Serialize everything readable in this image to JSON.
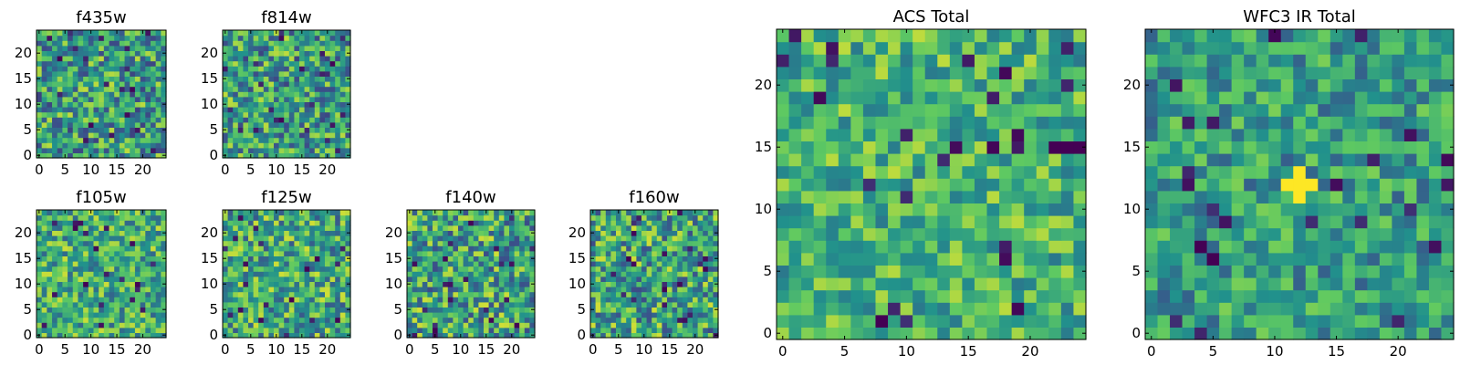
{
  "chart_data": [
    {
      "type": "heatmap",
      "title": "f435w",
      "grid_size": 25,
      "x_ticks": [
        "0",
        "5",
        "10",
        "15",
        "20"
      ],
      "y_ticks": [
        "0",
        "5",
        "10",
        "15",
        "20"
      ],
      "colormap": [
        "#440154",
        "#3b528b",
        "#21918c",
        "#5ec962",
        "#fde725"
      ],
      "background_value": 0.55,
      "variation": 0.35,
      "features": []
    },
    {
      "type": "heatmap",
      "title": "f814w",
      "grid_size": 25,
      "x_ticks": [
        "0",
        "5",
        "10",
        "15",
        "20"
      ],
      "y_ticks": [
        "0",
        "5",
        "10",
        "15",
        "20"
      ],
      "colormap": [
        "#440154",
        "#3b528b",
        "#21918c",
        "#5ec962",
        "#fde725"
      ],
      "background_value": 0.55,
      "variation": 0.35,
      "features": []
    },
    {
      "type": "heatmap",
      "title": "f105w",
      "grid_size": 25,
      "x_ticks": [
        "0",
        "5",
        "10",
        "15",
        "20"
      ],
      "y_ticks": [
        "0",
        "5",
        "10",
        "15",
        "20"
      ],
      "colormap": [
        "#440154",
        "#3b528b",
        "#21918c",
        "#5ec962",
        "#fde725"
      ],
      "background_value": 0.62,
      "variation": 0.3,
      "features": [
        {
          "x": 9,
          "y": 10,
          "value": 0.0
        }
      ]
    },
    {
      "type": "heatmap",
      "title": "f125w",
      "grid_size": 25,
      "x_ticks": [
        "0",
        "5",
        "10",
        "15",
        "20"
      ],
      "y_ticks": [
        "0",
        "5",
        "10",
        "15",
        "20"
      ],
      "colormap": [
        "#440154",
        "#3b528b",
        "#21918c",
        "#5ec962",
        "#fde725"
      ],
      "background_value": 0.6,
      "variation": 0.33,
      "features": []
    },
    {
      "type": "heatmap",
      "title": "f140w",
      "grid_size": 25,
      "x_ticks": [
        "0",
        "5",
        "10",
        "15",
        "20"
      ],
      "y_ticks": [
        "0",
        "5",
        "10",
        "15",
        "20"
      ],
      "colormap": [
        "#440154",
        "#3b528b",
        "#21918c",
        "#5ec962",
        "#fde725"
      ],
      "background_value": 0.58,
      "variation": 0.35,
      "features": []
    },
    {
      "type": "heatmap",
      "title": "f160w",
      "grid_size": 25,
      "x_ticks": [
        "0",
        "5",
        "10",
        "15",
        "20"
      ],
      "y_ticks": [
        "0",
        "5",
        "10",
        "15",
        "20"
      ],
      "colormap": [
        "#440154",
        "#3b528b",
        "#21918c",
        "#5ec962",
        "#fde725"
      ],
      "background_value": 0.58,
      "variation": 0.35,
      "features": []
    },
    {
      "type": "heatmap",
      "title": "ACS Total",
      "grid_size": 25,
      "x_ticks": [
        "0",
        "5",
        "10",
        "15",
        "20"
      ],
      "y_ticks": [
        "0",
        "5",
        "10",
        "15",
        "20"
      ],
      "colormap": [
        "#440154",
        "#3b528b",
        "#21918c",
        "#5ec962",
        "#fde725"
      ],
      "background_value": 0.65,
      "variation": 0.25,
      "features": [
        {
          "x": 22,
          "y": 15,
          "value": 0.0
        },
        {
          "x": 23,
          "y": 15,
          "value": 0.0
        },
        {
          "x": 24,
          "y": 15,
          "value": 0.0
        }
      ]
    },
    {
      "type": "heatmap",
      "title": "WFC3 IR Total",
      "grid_size": 25,
      "x_ticks": [
        "0",
        "5",
        "10",
        "15",
        "20"
      ],
      "y_ticks": [
        "0",
        "5",
        "10",
        "15",
        "20"
      ],
      "colormap": [
        "#440154",
        "#3b528b",
        "#21918c",
        "#5ec962",
        "#fde725"
      ],
      "background_value": 0.55,
      "variation": 0.25,
      "features": [
        {
          "x": 11,
          "y": 12,
          "value": 1.0
        },
        {
          "x": 12,
          "y": 12,
          "value": 1.0
        },
        {
          "x": 12,
          "y": 13,
          "value": 1.0
        },
        {
          "x": 13,
          "y": 12,
          "value": 1.0
        },
        {
          "x": 12,
          "y": 11,
          "value": 1.0
        },
        {
          "x": 4,
          "y": 7,
          "value": 0.0
        },
        {
          "x": 5,
          "y": 6,
          "value": 0.0
        }
      ]
    }
  ]
}
